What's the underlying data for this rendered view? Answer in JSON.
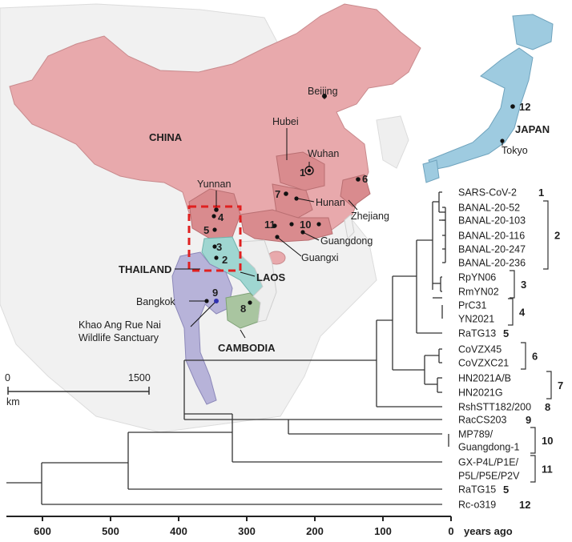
{
  "map": {
    "countries": {
      "china": "CHINA",
      "japan": "JAPAN",
      "thailand": "THAILAND",
      "laos": "LAOS",
      "cambodia": "CAMBODIA"
    },
    "places": {
      "beijing": "Beijing",
      "hubei": "Hubei",
      "wuhan": "Wuhan",
      "yunnan": "Yunnan",
      "hunan": "Hunan",
      "zhejiang": "Zhejiang",
      "guangdong": "Guangdong",
      "guangxi": "Guangxi",
      "tokyo": "Tokyo",
      "bangkok": "Bangkok",
      "sanctuary_line1": "Khao Ang Rue Nai",
      "sanctuary_line2": "Wildlife Sanctuary"
    },
    "site_numbers": [
      "1",
      "2",
      "3",
      "4",
      "5",
      "6",
      "7",
      "8",
      "9",
      "10",
      "11",
      "12"
    ],
    "scale_bar": {
      "start": "0",
      "end": "1500",
      "unit": "km"
    },
    "colors": {
      "china": "#e8a9ac",
      "japan": "#9ecbe0",
      "thailand": "#b7b3d9",
      "laos": "#9fd6d1",
      "cambodia": "#a9c5a0",
      "region_highlight": "#d98b8e",
      "box": "#e02020"
    }
  },
  "tree": {
    "leaves": [
      {
        "label": "SARS-CoV-2",
        "group": "1"
      },
      {
        "label": "BANAL-20-52",
        "group": "2"
      },
      {
        "label": "BANAL-20-103",
        "group": "2"
      },
      {
        "label": "BANAL-20-116",
        "group": "2"
      },
      {
        "label": "BANAL-20-247",
        "group": "2"
      },
      {
        "label": "BANAL-20-236",
        "group": "2"
      },
      {
        "label": "RpYN06",
        "group": "3"
      },
      {
        "label": "RmYN02",
        "group": "3"
      },
      {
        "label": "PrC31",
        "group": "4"
      },
      {
        "label": "YN2021",
        "group": "4"
      },
      {
        "label": "RaTG13",
        "group": "5"
      },
      {
        "label": "CoVZX45",
        "group": "6"
      },
      {
        "label": "CoVZXC21",
        "group": "6"
      },
      {
        "label": "HN2021A/B",
        "group": "7"
      },
      {
        "label": "HN2021G",
        "group": "7"
      },
      {
        "label": "RshSTT182/200",
        "group": "8"
      },
      {
        "label": "RacCS203",
        "group": "9"
      },
      {
        "label": "MP789/",
        "group": "10"
      },
      {
        "label": "Guangdong-1",
        "group": "10"
      },
      {
        "label": "GX-P4L/P1E/",
        "group": "11"
      },
      {
        "label": "P5L/P5E/P2V",
        "group": "11"
      },
      {
        "label": "RaTG15",
        "group": "5"
      },
      {
        "label": "Rc-o319",
        "group": "12"
      }
    ],
    "group_labels": [
      "1",
      "2",
      "3",
      "4",
      "5",
      "6",
      "7",
      "8",
      "9",
      "10",
      "11",
      "5",
      "12"
    ],
    "axis": {
      "ticks": [
        "600",
        "500",
        "400",
        "300",
        "200",
        "100",
        "0"
      ],
      "title": "years ago"
    }
  }
}
